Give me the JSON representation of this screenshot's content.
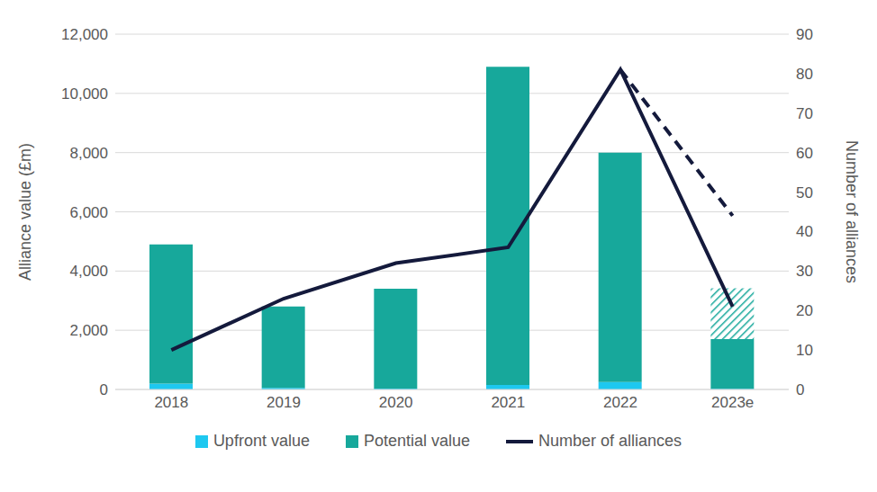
{
  "chart_data": {
    "type": "bar",
    "stacked": true,
    "grid": true,
    "legend": "bottom",
    "y_label": "Alliance value (£m)",
    "y2_label": "Number of alliances",
    "categories": [
      "2018",
      "2019",
      "2020",
      "2021",
      "2022",
      "2023e"
    ],
    "ylim": [
      0,
      12000
    ],
    "yticks": [
      0,
      {
        "value": 2000,
        "label": "2,000"
      },
      {
        "value": 4000,
        "label": "4,000"
      },
      {
        "value": 6000,
        "label": "6,000"
      },
      {
        "value": 8000,
        "label": "8,000"
      },
      {
        "value": 10000,
        "label": "10,000"
      },
      {
        "value": 12000,
        "label": "12,000"
      }
    ],
    "y2lim": [
      0,
      90
    ],
    "y2ticks": [
      0,
      10,
      20,
      30,
      40,
      50,
      60,
      70,
      80,
      90
    ],
    "series": [
      {
        "name": "Upfront value",
        "type": "bar",
        "color": "#1ec8f0",
        "values": [
          200,
          50,
          30,
          150,
          250,
          20
        ]
      },
      {
        "name": "Potential value",
        "type": "bar",
        "color": "#17a89b",
        "values": [
          4700,
          2750,
          3370,
          10750,
          7750,
          1680
        ],
        "estimate_values": [
          null,
          null,
          null,
          null,
          null,
          1720
        ]
      },
      {
        "name": "Number of alliances",
        "type": "line",
        "axis": "y2",
        "color": "#141a3c",
        "values": [
          10,
          23,
          32,
          36,
          81,
          21
        ],
        "estimate_values": [
          null,
          null,
          null,
          null,
          81,
          44
        ]
      }
    ]
  }
}
